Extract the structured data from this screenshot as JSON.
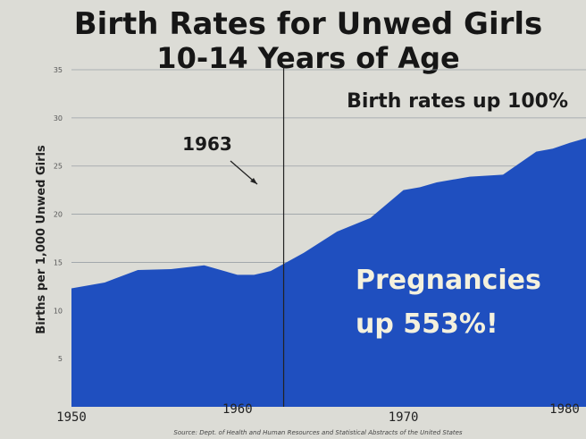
{
  "chart_data": {
    "type": "area",
    "title_line1": "Birth Rates for Unwed Girls",
    "title_line2": "10-14 Years of Age",
    "ylabel": "Births per 1,000 Unwed Girls",
    "xlabel": "",
    "x": [
      1950,
      1952,
      1954,
      1956,
      1958,
      1960,
      1961,
      1962,
      1964,
      1966,
      1968,
      1970,
      1971,
      1972,
      1974,
      1975,
      1976,
      1978,
      1979,
      1980,
      1981
    ],
    "values": [
      12.3,
      12.9,
      14.2,
      14.3,
      14.7,
      13.7,
      13.7,
      14.1,
      16.0,
      18.2,
      19.6,
      22.5,
      22.8,
      23.3,
      23.9,
      24.0,
      24.1,
      26.5,
      26.8,
      27.4,
      27.9
    ],
    "yticks": [
      "5",
      "10",
      "15",
      "20",
      "25",
      "30",
      "35"
    ],
    "ylim": [
      0,
      35
    ],
    "xticks": [
      "1950",
      "1960",
      "1970",
      "1980"
    ],
    "xlim": [
      1950,
      1981
    ],
    "grid": true,
    "colors": {
      "area": "#1f4fbf",
      "background": "#dcdcd6",
      "grid": "#9aa0a6"
    },
    "annotations": {
      "vline_year": 1963,
      "vline_label": "1963",
      "birth_rates": "Birth rates up 100%",
      "pregnancies_line1": "Pregnancies",
      "pregnancies_line2": "up 553%!"
    },
    "source": "Source: Dept. of Health and Human Resources and Statistical Abstracts of the United States"
  }
}
